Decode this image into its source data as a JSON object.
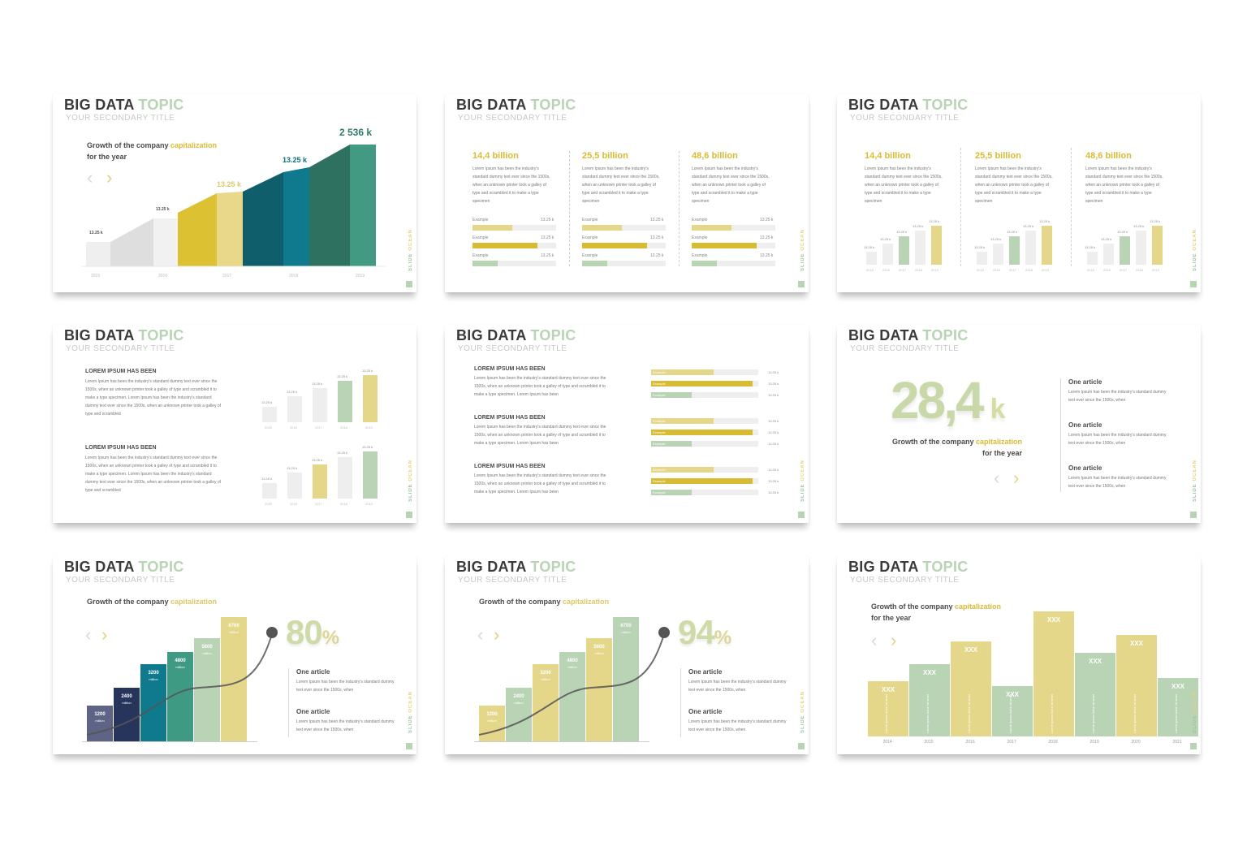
{
  "common": {
    "title_dark": "BIG DATA",
    "title_accent": "TOPIC",
    "subtitle": "YOUR SECONDARY TITLE",
    "brand_1": "SLIDE",
    "brand_2": "OCEAN"
  },
  "colors": {
    "dark_gray": "#3a3a3a",
    "sage": "#b9d3b5",
    "gold": "#d9bb33",
    "light_gold": "#e5d78a",
    "teal": "#0f7a8d",
    "dark_teal": "#0f5e6b",
    "green": "#3f9a83",
    "navy": "#2b3a62"
  },
  "slide1": {
    "growth_prefix": "Growth of the company ",
    "growth_accent": "capitalization",
    "growth_suffix": "for the year",
    "labels": [
      "13.25 k",
      "13.25 k",
      "13.25 k",
      "13.25 k",
      "2 536 k"
    ],
    "years": [
      "2015",
      "2016",
      "2017",
      "2018",
      "2019"
    ]
  },
  "slide2": {
    "columns": [
      {
        "value": "14,4 billion",
        "text": "Lorem Ipsum has been the industry's standard dummy text ever since the 1500s, when an unknown printer took a galley of type and scrambled it to make a type specimen"
      },
      {
        "value": "25,5 billion",
        "text": "Lorem Ipsum has been the industry's standard dummy text ever since the 1500s, when an unknown printer took a galley of type and scrambled it to make a type specimen"
      },
      {
        "value": "48,6 billion",
        "text": "Lorem Ipsum has been the industry's standard dummy text ever since the 1500s, when an unknown printer took a galley of type and scrambled it to make a type specimen"
      }
    ],
    "bar_label": "Example",
    "bar_values": [
      "13.25 k",
      "13.25 k",
      "13.25 k"
    ],
    "bar_levels": [
      0.48,
      0.78,
      0.3
    ]
  },
  "slide3": {
    "columns": [
      {
        "value": "14,4 billion",
        "text": "Lorem Ipsum has been the industry's standard dummy text ever since the 1500s, when an unknown printer took a galley of type and scrambled it to make a type specimen"
      },
      {
        "value": "25,5 billion",
        "text": "Lorem Ipsum has been the industry's standard dummy text ever since the 1500s, when an unknown printer took a galley of type and scrambled it to make a type specimen"
      },
      {
        "value": "48,6 billion",
        "text": "Lorem Ipsum has been the industry's standard dummy text ever since the 1500s, when an unknown printer took a galley of type and scrambled it to make a type specimen"
      }
    ],
    "bar_labels": [
      "13.25 k",
      "13.25 k",
      "13.25 k",
      "13.25 k",
      "13.25 k"
    ],
    "years": [
      "2015",
      "2016",
      "2017",
      "2018",
      "2019"
    ],
    "levels": [
      0.33,
      0.55,
      0.72,
      0.88,
      1.0
    ]
  },
  "slide4": {
    "heading": "LOREM IPSUM HAS BEEN",
    "text": "Lorem Ipsum has been the industry's standard dummy text ever since the 1500s, when an unknown printer took a galley of type and scrambled it to make a type specimen. Lorem Ipsum has been the industry's standard dummy text ever since the 1500s, when an unknown printer took a galley of type and scrambled",
    "bar_labels": [
      "13.25 k",
      "13.25 k",
      "13.25 k",
      "13.25 k",
      "13.25 k"
    ],
    "years": [
      "2015",
      "2016",
      "2017",
      "2018",
      "2019"
    ],
    "levels": [
      0.33,
      0.55,
      0.72,
      0.88,
      1.0
    ]
  },
  "slide5": {
    "heading": "LOREM IPSUM HAS BEEN",
    "text": "Lorem Ipsum has been the industry's standard dummy text ever since the 1500s, when an unknown printer took a galley of type and scrambled it to make a type specimen. Lorem Ipsum has been",
    "bar_label": "Example",
    "bar_values": [
      "13.25 k",
      "13.25 k",
      "13.25 k"
    ],
    "bar_levels": [
      0.58,
      0.95,
      0.38
    ]
  },
  "slide6": {
    "big_number": "28,4",
    "big_unit": "k",
    "growth_prefix": "Growth of the company ",
    "growth_accent": "capitalization",
    "growth_suffix": "for the year",
    "articles": [
      {
        "title": "One article",
        "text": "Lorem Ipsum has been the industry's standard dummy text ever since the 1500s, when"
      },
      {
        "title": "One article",
        "text": "Lorem Ipsum has been the industry's standard dummy text ever since the 1500s, when"
      },
      {
        "title": "One article",
        "text": "Lorem Ipsum has been the industry's standard dummy text ever since the 1500s, when"
      }
    ]
  },
  "slide7": {
    "growth_prefix": "Growth of the company ",
    "growth_accent": "capitalization",
    "percent": "80",
    "percent_sign": "%",
    "bars": [
      {
        "value": "1200",
        "unit": "million",
        "level": 0.29,
        "color": "#5d6485"
      },
      {
        "value": "2400",
        "unit": "million",
        "level": 0.43,
        "color": "#27355d"
      },
      {
        "value": "3200",
        "unit": "million",
        "level": 0.62,
        "color": "#0f7a8d"
      },
      {
        "value": "4800",
        "unit": "million",
        "level": 0.72,
        "color": "#3f9a83"
      },
      {
        "value": "5600",
        "unit": "million",
        "level": 0.83,
        "color": "#b9d3b5"
      },
      {
        "value": "6700",
        "unit": "million",
        "level": 1.0,
        "color": "#e5d78a"
      }
    ],
    "articles": [
      {
        "title": "One article",
        "text": "Lorem Ipsum has been the industry's standard dummy text ever since the 1500s, when"
      },
      {
        "title": "One article",
        "text": "Lorem Ipsum has been the industry's standard dummy text ever since the 1500s, when"
      }
    ]
  },
  "slide8": {
    "growth_prefix": "Growth of the company ",
    "growth_accent": "capitalization",
    "percent": "94",
    "percent_sign": "%",
    "bars": [
      {
        "value": "1200",
        "unit": "million",
        "level": 0.29,
        "color": "#e5d78a"
      },
      {
        "value": "2400",
        "unit": "million",
        "level": 0.43,
        "color": "#b9d3b5"
      },
      {
        "value": "3200",
        "unit": "million",
        "level": 0.62,
        "color": "#e5d78a"
      },
      {
        "value": "4800",
        "unit": "million",
        "level": 0.72,
        "color": "#b9d3b5"
      },
      {
        "value": "5600",
        "unit": "million",
        "level": 0.83,
        "color": "#e5d78a"
      },
      {
        "value": "6700",
        "unit": "million",
        "level": 1.0,
        "color": "#b9d3b5"
      }
    ],
    "articles": [
      {
        "title": "One article",
        "text": "Lorem Ipsum has been the industry's standard dummy text ever since the 1500s, when"
      },
      {
        "title": "One article",
        "text": "Lorem Ipsum has been the industry's standard dummy text ever since the 1500s, when"
      }
    ]
  },
  "slide9": {
    "growth_prefix": "Growth of the company ",
    "growth_accent": "capitalization",
    "growth_suffix": "for the year",
    "bar_label": "XXX",
    "bar_caption": "Lorem ipsum dolor sit amet",
    "years": [
      "2014",
      "2015",
      "2016",
      "2017",
      "2018",
      "2019",
      "2020",
      "2021"
    ],
    "levels": [
      0.44,
      0.58,
      0.76,
      0.4,
      1.0,
      0.67,
      0.81,
      0.47
    ],
    "bar_colors": [
      "#e5d78a",
      "#b9d3b5",
      "#e5d78a",
      "#b9d3b5",
      "#e5d78a",
      "#b9d3b5",
      "#e5d78a",
      "#b9d3b5"
    ]
  }
}
